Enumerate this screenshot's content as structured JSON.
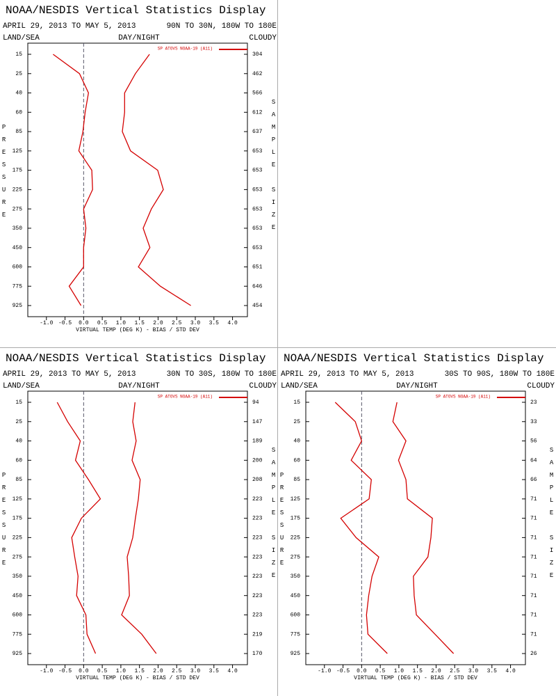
{
  "chart_data": [
    {
      "type": "line",
      "title": "NOAA/NESDIS Vertical Statistics Display",
      "subtitle": "APRIL 29, 2013 TO MAY 5, 2013",
      "region": "90N TO 30N, 180W TO 180E",
      "corner_labels": [
        "LAND/SEA",
        "DAY/NIGHT",
        "CLOUDY"
      ],
      "y_label": "PRESSURE",
      "y2_label": "SAMPLE SIZE",
      "x_label": "VIRTUAL TEMP (DEG K) - BIAS / STD DEV",
      "categories": [
        15,
        25,
        40,
        60,
        85,
        125,
        175,
        225,
        275,
        350,
        450,
        600,
        775,
        925
      ],
      "sample_size": [
        304,
        462,
        566,
        612,
        637,
        653,
        653,
        653,
        653,
        653,
        653,
        651,
        646,
        454
      ],
      "xlim": [
        -1.5,
        4.4
      ],
      "xticks": [
        {
          "value": -1,
          "label": "-1.0"
        },
        {
          "value": -0.5,
          "label": "-0.5"
        },
        {
          "value": 0,
          "label": "0.0"
        },
        {
          "value": 0.5,
          "label": "0.5"
        },
        {
          "value": 1,
          "label": "1.0"
        },
        {
          "value": 1.5,
          "label": "1.5"
        },
        {
          "value": 2,
          "label": "2.0"
        },
        {
          "value": 2.5,
          "label": "2.5"
        },
        {
          "value": 3,
          "label": "3.0"
        },
        {
          "value": 3.5,
          "label": "3.5"
        },
        {
          "value": 4,
          "label": "4.0"
        }
      ],
      "zero_line": true,
      "series": [
        {
          "name": "SP ATOVS NOAA-19 (A11)",
          "color": "#d40000",
          "values": [
            -0.82,
            -0.11,
            0.13,
            0.04,
            -0.02,
            -0.13,
            0.22,
            0.24,
            0,
            0.06,
            0,
            0,
            -0.39,
            -0.07
          ]
        },
        {
          "color": "#d40000",
          "values": [
            1.77,
            1.39,
            1.1,
            1.1,
            1.04,
            1.26,
            1.99,
            2.14,
            1.82,
            1.6,
            1.78,
            1.47,
            2.06,
            2.88
          ]
        }
      ]
    },
    {
      "type": "line",
      "title": "NOAA/NESDIS Vertical Statistics Display",
      "subtitle": "APRIL 29, 2013 TO MAY 5, 2013",
      "region": "30N TO 30S, 180W TO 180E",
      "corner_labels": [
        "LAND/SEA",
        "DAY/NIGHT",
        "CLOUDY"
      ],
      "y_label": "PRESSURE",
      "y2_label": "SAMPLE SIZE",
      "x_label": "VIRTUAL TEMP (DEG K) - BIAS / STD DEV",
      "categories": [
        15,
        25,
        40,
        60,
        85,
        125,
        175,
        225,
        275,
        350,
        450,
        600,
        775,
        925
      ],
      "sample_size": [
        94,
        147,
        189,
        200,
        208,
        223,
        223,
        223,
        223,
        223,
        223,
        223,
        219,
        170
      ],
      "xlim": [
        -1.5,
        4.4
      ],
      "xticks": [
        {
          "value": -1,
          "label": "-1.0"
        },
        {
          "value": -0.5,
          "label": "-0.5"
        },
        {
          "value": 0,
          "label": "0.0"
        },
        {
          "value": 0.5,
          "label": "0.5"
        },
        {
          "value": 1,
          "label": "1.0"
        },
        {
          "value": 1.5,
          "label": "1.5"
        },
        {
          "value": 2,
          "label": "2.0"
        },
        {
          "value": 2.5,
          "label": "2.5"
        },
        {
          "value": 3,
          "label": "3.0"
        },
        {
          "value": 3.5,
          "label": "3.5"
        },
        {
          "value": 4,
          "label": "4.0"
        }
      ],
      "zero_line": true,
      "series": [
        {
          "name": "SP ATOVS NOAA-19 (A11)",
          "color": "#d40000",
          "values": [
            -0.71,
            -0.43,
            -0.09,
            -0.22,
            0.13,
            0.45,
            -0.06,
            -0.32,
            -0.24,
            -0.15,
            -0.19,
            0.06,
            0.09,
            0.32
          ]
        },
        {
          "color": "#d40000",
          "values": [
            1.38,
            1.32,
            1.41,
            1.3,
            1.52,
            1.47,
            1.39,
            1.32,
            1.17,
            1.21,
            1.23,
            1.02,
            1.56,
            1.95
          ]
        }
      ]
    },
    {
      "type": "line",
      "title": "NOAA/NESDIS Vertical Statistics Display",
      "subtitle": "APRIL 29, 2013 TO MAY 5, 2013",
      "region": "30S TO 90S, 180W TO 180E",
      "corner_labels": [
        "LAND/SEA",
        "DAY/NIGHT",
        "CLOUDY"
      ],
      "y_label": "PRESSURE",
      "y2_label": "SAMPLE SIZE",
      "x_label": "VIRTUAL TEMP (DEG K) - BIAS / STD DEV",
      "categories": [
        15,
        25,
        40,
        60,
        85,
        125,
        175,
        225,
        275,
        350,
        450,
        600,
        775,
        925
      ],
      "sample_size": [
        23,
        33,
        56,
        64,
        66,
        71,
        71,
        71,
        71,
        71,
        71,
        71,
        71,
        26
      ],
      "xlim": [
        -1.5,
        4.4
      ],
      "xticks": [
        {
          "value": -1,
          "label": "-1.0"
        },
        {
          "value": -0.5,
          "label": "-0.5"
        },
        {
          "value": 0,
          "label": "0.0"
        },
        {
          "value": 0.5,
          "label": "0.5"
        },
        {
          "value": 1,
          "label": "1.0"
        },
        {
          "value": 1.5,
          "label": "1.5"
        },
        {
          "value": 2,
          "label": "2.0"
        },
        {
          "value": 2.5,
          "label": "2.5"
        },
        {
          "value": 3,
          "label": "3.0"
        },
        {
          "value": 3.5,
          "label": "3.5"
        },
        {
          "value": 4,
          "label": "4.0"
        }
      ],
      "zero_line": true,
      "series": [
        {
          "name": "SP ATOVS NOAA-19 (A11)",
          "color": "#d40000",
          "values": [
            -0.71,
            -0.17,
            0,
            -0.28,
            0.26,
            0.2,
            -0.56,
            -0.15,
            0.46,
            0.28,
            0.19,
            0.13,
            0.17,
            0.69
          ]
        },
        {
          "color": "#d40000",
          "values": [
            0.95,
            0.84,
            1.19,
            0.99,
            1.19,
            1.23,
            1.9,
            1.86,
            1.78,
            1.39,
            1.41,
            1.47,
            1.97,
            2.47
          ]
        }
      ]
    }
  ]
}
